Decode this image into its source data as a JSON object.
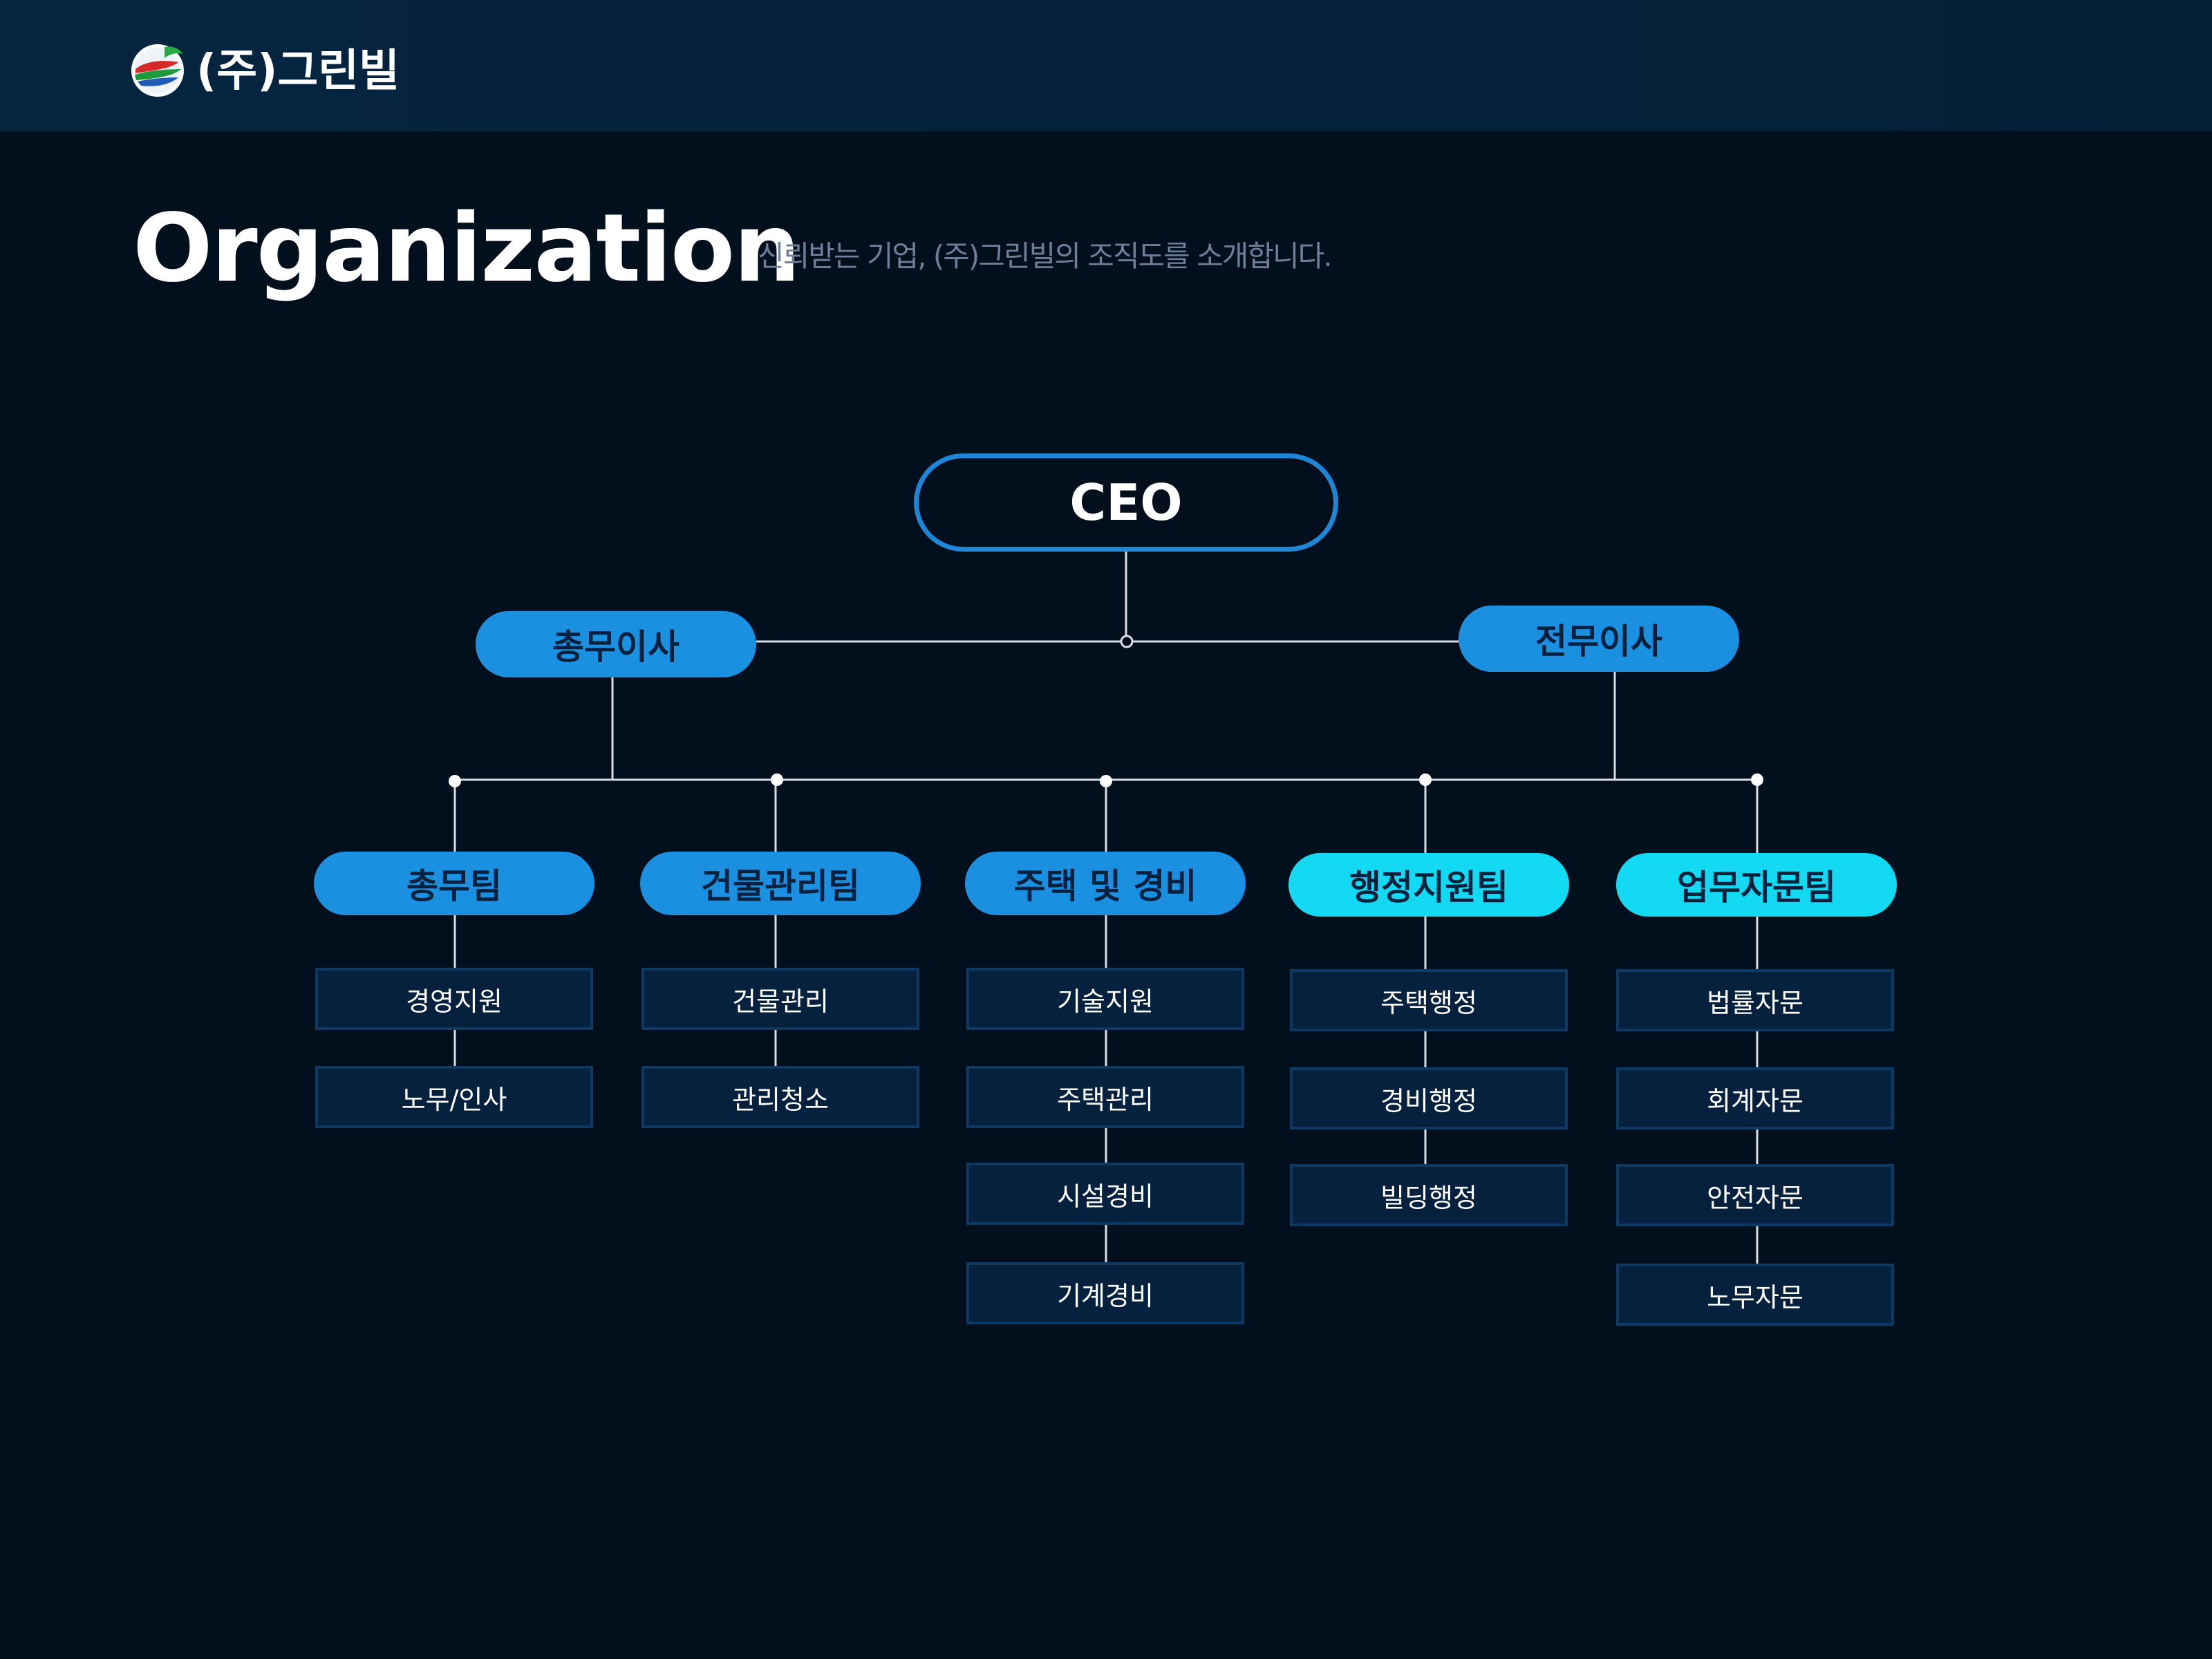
{
  "header": {
    "brand": "(주)그린빌",
    "logo_icon": "greenvil-logo-icon"
  },
  "title": {
    "main": "Organization",
    "subtitle": "신뢰받는 기업, (주)그린빌의 조직도를 소개합니다."
  },
  "org": {
    "ceo": "CEO",
    "executives": [
      {
        "label": "총무이사"
      },
      {
        "label": "전무이사"
      }
    ],
    "teams": [
      {
        "label": "총무팀",
        "units": [
          "경영지원",
          "노무/인사"
        ]
      },
      {
        "label": "건물관리팀",
        "units": [
          "건물관리",
          "관리청소"
        ]
      },
      {
        "label": "주택 및 경비",
        "units": [
          "기술지원",
          "주택관리",
          "시설경비",
          "기계경비"
        ]
      },
      {
        "label": "행정지원팀",
        "units": [
          "주택행정",
          "경비행정",
          "빌딩행정"
        ]
      },
      {
        "label": "업무자문팀",
        "units": [
          "법률자문",
          "회계자문",
          "안전자문",
          "노무자문"
        ]
      }
    ]
  },
  "colors": {
    "background": "#020f1c",
    "header": "#05223c",
    "accent_blue": "#1b8fe0",
    "accent_cyan": "#13d9f2",
    "unit_box": "#06213d",
    "ceo_border": "#1d86d8"
  }
}
